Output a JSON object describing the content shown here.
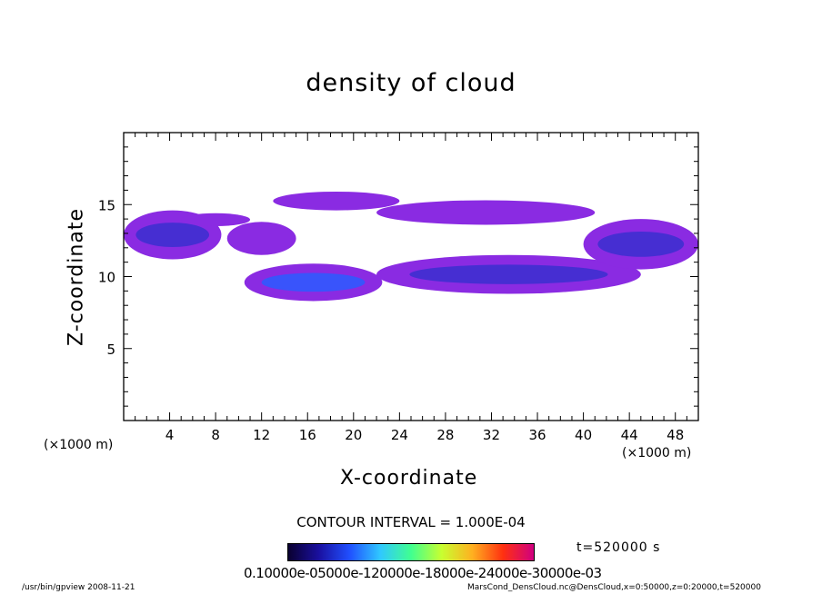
{
  "chart_data": {
    "type": "heatmap",
    "title": "density of cloud",
    "xlabel": "X-coordinate",
    "ylabel": "Z-coordinate",
    "x_unit": "(×1000 m)",
    "xlim": [
      0,
      50
    ],
    "ylim": [
      0,
      20
    ],
    "x_ticks": [
      "4",
      "8",
      "12",
      "16",
      "20",
      "24",
      "28",
      "32",
      "36",
      "40",
      "44",
      "48"
    ],
    "y_ticks": [
      "5",
      "10",
      "15"
    ],
    "colormap": [
      "#0a0030",
      "#1a10a0",
      "#2050ff",
      "#30c8ff",
      "#40ff90",
      "#c8ff30",
      "#ffb020",
      "#ff3010",
      "#d00080"
    ],
    "fill_color": "#8a2be2",
    "regions": [
      {
        "x": [
          0,
          8.5
        ],
        "z": [
          11.2,
          14.6
        ],
        "level": "low-medium"
      },
      {
        "x": [
          5,
          11
        ],
        "z": [
          13.5,
          14.4
        ],
        "level": "low"
      },
      {
        "x": [
          9,
          15
        ],
        "z": [
          11.5,
          13.8
        ],
        "level": "low"
      },
      {
        "x": [
          13,
          24
        ],
        "z": [
          14.6,
          15.9
        ],
        "level": "low"
      },
      {
        "x": [
          10.5,
          22.5
        ],
        "z": [
          8.3,
          10.9
        ],
        "level": "medium"
      },
      {
        "x": [
          22,
          45
        ],
        "z": [
          8.8,
          11.5
        ],
        "level": "low-medium"
      },
      {
        "x": [
          22,
          41
        ],
        "z": [
          13.6,
          15.3
        ],
        "level": "low"
      },
      {
        "x": [
          40,
          50
        ],
        "z": [
          10.5,
          14.0
        ],
        "level": "low-medium"
      }
    ],
    "contour_interval": "CONTOUR INTERVAL = 1.000E-04",
    "colorbar_labels": "0.10000e-05000e-120000e-18000e-24000e-30000e-03",
    "time_label": "t=520000 s"
  },
  "footer": {
    "left": "/usr/bin/gpview  2008-11-21",
    "right": "MarsCond_DensCloud.nc@DensCloud,x=0:50000,z=0:20000,t=520000"
  }
}
